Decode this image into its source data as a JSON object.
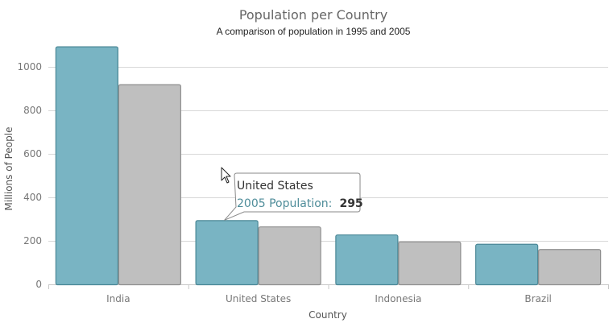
{
  "chart_data": {
    "type": "bar",
    "title": "Population per Country",
    "subtitle": "A comparison of population in 1995 and 2005",
    "xlabel": "Country",
    "ylabel": "Millions of People",
    "categories": [
      "India",
      "United States",
      "Indonesia",
      "Brazil"
    ],
    "series": [
      {
        "name": "2005 Population",
        "values": [
          1094,
          295,
          229,
          186
        ],
        "color": "#79b4c3",
        "stroke": "#4a8796"
      },
      {
        "values": [
          920,
          266,
          197,
          162
        ],
        "color": "#bfbfbf",
        "stroke": "#8f8f8f"
      }
    ],
    "ylim": [
      0,
      1100
    ],
    "yticks": [
      0,
      200,
      400,
      600,
      800,
      1000
    ],
    "grid": true,
    "tooltip": {
      "category": "United States",
      "series_label": "2005 Population:",
      "value": "295"
    }
  }
}
